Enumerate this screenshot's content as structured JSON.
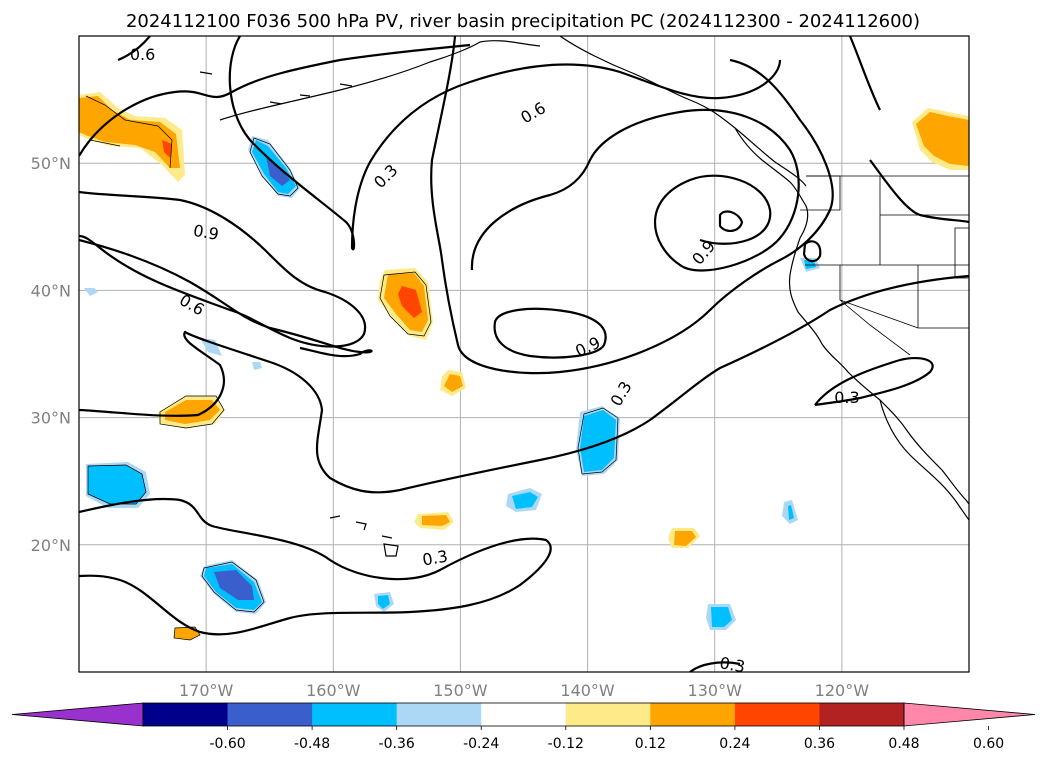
{
  "title": "2024112100 F036 500 hPa PV, river basin precipitation PC (2024112300 - 2024112600)",
  "map": {
    "lon_range": [
      -180,
      -110
    ],
    "lat_range": [
      10,
      60
    ],
    "lon_ticks": [
      {
        "lon": -170,
        "label": "170°W"
      },
      {
        "lon": -160,
        "label": "160°W"
      },
      {
        "lon": -150,
        "label": "150°W"
      },
      {
        "lon": -140,
        "label": "140°W"
      },
      {
        "lon": -130,
        "label": "130°W"
      },
      {
        "lon": -120,
        "label": "120°W"
      }
    ],
    "lat_ticks": [
      {
        "lat": 50,
        "label": "50°N"
      },
      {
        "lat": 40,
        "label": "40°N"
      },
      {
        "lat": 30,
        "label": "30°N"
      },
      {
        "lat": 20,
        "label": "20°N"
      }
    ],
    "grid": true
  },
  "contour_labels": [
    {
      "text": "0.6",
      "lon": -175,
      "lat": 58.6,
      "rot": 0
    },
    {
      "text": "0.6",
      "lon": -144.3,
      "lat": 54.0,
      "rot": -30
    },
    {
      "text": "0.3",
      "lon": -155.9,
      "lat": 49.0,
      "rot": -45
    },
    {
      "text": "0.9",
      "lon": -170.0,
      "lat": 44.6,
      "rot": 10
    },
    {
      "text": "0.6",
      "lon": -171.1,
      "lat": 38.9,
      "rot": 30
    },
    {
      "text": "0.9",
      "lon": -130.9,
      "lat": 43.0,
      "rot": -50
    },
    {
      "text": "0.9",
      "lon": -140.0,
      "lat": 35.6,
      "rot": -25
    },
    {
      "text": "0.3",
      "lon": -137.4,
      "lat": 31.9,
      "rot": -60
    },
    {
      "text": "0.3",
      "lon": -119.6,
      "lat": 31.6,
      "rot": 0
    },
    {
      "text": "0.3",
      "lon": -152.0,
      "lat": 19.0,
      "rot": -10
    },
    {
      "text": "0.3",
      "lon": -128.6,
      "lat": 10.6,
      "rot": 10
    }
  ],
  "precip_levels": {
    "negative": [
      "#9932cc",
      "#00008b",
      "#3a5fcd",
      "#00bfff",
      "#add8f5"
    ],
    "neutral": "#ffffff",
    "positive": [
      "#ffea8a",
      "#ffa500",
      "#ff4500",
      "#b22222",
      "#ff88aa"
    ]
  },
  "colorbar": {
    "ticks": [
      "-0.60",
      "-0.48",
      "-0.36",
      "-0.24",
      "-0.12",
      "0.12",
      "0.24",
      "0.36",
      "0.48",
      "0.60"
    ],
    "colors": [
      "#9932cc",
      "#00008b",
      "#3a5fcd",
      "#00bfff",
      "#add8f5",
      "#ffffff",
      "#ffea8a",
      "#ffa500",
      "#ff4500",
      "#b22222",
      "#ff88aa"
    ]
  }
}
